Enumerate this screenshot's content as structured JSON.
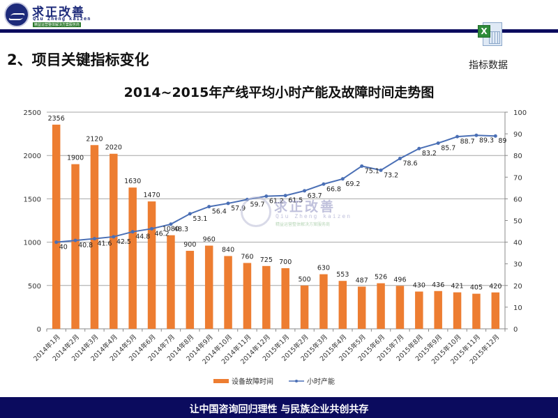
{
  "header": {
    "logo_cn": "求正改善",
    "logo_en": "Qiu Zheng kaizen",
    "logo_sub": "精益运营整体解决方案服务商"
  },
  "section_title": "2、项目关键指标变化",
  "attachment": {
    "icon": "excel-file-icon",
    "label": "指标数据"
  },
  "watermark": {
    "cn": "求正改善",
    "en": "Qiu Zheng kaizen",
    "sub": "精益运营整体解决方案服务商"
  },
  "footer": {
    "slogan": "让中国咨询回归理性  与民族企业共创共存"
  },
  "colors": {
    "bar": "#ed7d31",
    "line": "#4a6fb5",
    "header_band": "#0b0b5e",
    "grid": "#a6a6a6"
  },
  "chart_data": {
    "type": "bar+line",
    "title": "2014~2015年产线平均小时产能及故障时间走势图",
    "categories": [
      "2014年1月",
      "2014年2月",
      "2014年3月",
      "2014年4月",
      "2014年5月",
      "2014年6月",
      "2014年7月",
      "2014年8月",
      "2014年9月",
      "2014年10月",
      "2014年11月",
      "2014年12月",
      "2015年1月",
      "2015年2月",
      "2015年3月",
      "2015年4月",
      "2015年5月",
      "2015年6月",
      "2015年7月",
      "2015年8月",
      "2015年9月",
      "2015年10月",
      "2015年11月",
      "2015年12月"
    ],
    "series": [
      {
        "name": "设备故障时间",
        "type": "bar",
        "axis": "left",
        "values": [
          2356,
          1900,
          2120,
          2020,
          1630,
          1470,
          1080,
          900,
          960,
          840,
          760,
          725,
          700,
          500,
          630,
          553,
          487,
          526,
          496,
          430,
          436,
          421,
          405,
          420
        ]
      },
      {
        "name": "小时产能",
        "type": "line",
        "axis": "right",
        "values": [
          40,
          40.8,
          41.6,
          42.5,
          44.8,
          46.2,
          48.3,
          53.1,
          56.4,
          57.9,
          59.7,
          61.2,
          61.5,
          63.7,
          66.8,
          69.2,
          75.1,
          73.2,
          78.6,
          83.2,
          85.7,
          88.7,
          89.3,
          89
        ]
      }
    ],
    "y_left": {
      "range": [
        0,
        2500
      ],
      "ticks": [
        "0",
        "500",
        "1000",
        "1500",
        "2000",
        "2500"
      ]
    },
    "y_right": {
      "range": [
        0,
        100
      ],
      "ticks": [
        "0",
        "10",
        "20",
        "30",
        "40",
        "50",
        "60",
        "70",
        "80",
        "90",
        "100"
      ]
    },
    "grid": true,
    "legend_position": "bottom",
    "legend": [
      "设备故障时间",
      "小时产能"
    ]
  }
}
